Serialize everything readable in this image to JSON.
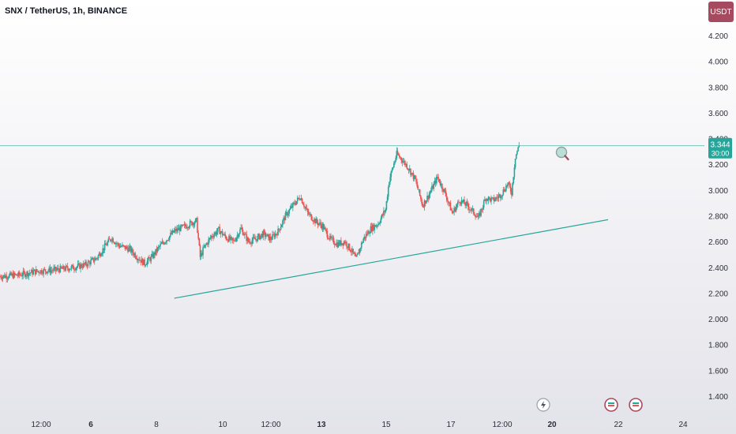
{
  "header": {
    "symbol_title": "SNX / TetherUS, 1h, BINANCE",
    "currency_label": "USDT"
  },
  "price_badge": {
    "price": "3.344",
    "countdown": "30:00",
    "color": "#26a69a"
  },
  "colors": {
    "up": "#26a69a",
    "down": "#ef5350",
    "trendline": "#26a69a",
    "price_line": "#26a69a",
    "currency_button": "#a64a5f"
  },
  "icons": [
    "search-icon",
    "lightning-event-icon",
    "flag-event-icon",
    "flag-event-icon"
  ],
  "chart_data": {
    "type": "candlestick",
    "title": "SNX / TetherUS, 1h, BINANCE",
    "ylim": [
      1.3,
      4.3
    ],
    "y_ticks": [
      "1.400",
      "1.600",
      "1.800",
      "2.000",
      "2.200",
      "2.400",
      "2.600",
      "2.800",
      "3.000",
      "3.200",
      "3.400",
      "3.600",
      "3.800",
      "4.000",
      "4.200"
    ],
    "x_ticks": [
      {
        "label": "12:00",
        "bold": false
      },
      {
        "label": "6",
        "bold": true
      },
      {
        "label": "8",
        "bold": false
      },
      {
        "label": "10",
        "bold": false
      },
      {
        "label": "12:00",
        "bold": false
      },
      {
        "label": "13",
        "bold": true
      },
      {
        "label": "15",
        "bold": false
      },
      {
        "label": "17",
        "bold": false
      },
      {
        "label": "12:00",
        "bold": false
      },
      {
        "label": "20",
        "bold": true
      },
      {
        "label": "22",
        "bold": false
      },
      {
        "label": "24",
        "bold": false
      }
    ],
    "last_price": 3.344,
    "price_path": [
      [
        0,
        2.33
      ],
      [
        5,
        2.34
      ],
      [
        10,
        2.37
      ],
      [
        15,
        2.38
      ],
      [
        20,
        2.4
      ],
      [
        23,
        2.42
      ],
      [
        26,
        2.47
      ],
      [
        28,
        2.55
      ],
      [
        30,
        2.63
      ],
      [
        32,
        2.57
      ],
      [
        35,
        2.54
      ],
      [
        37,
        2.48
      ],
      [
        39,
        2.43
      ],
      [
        41,
        2.48
      ],
      [
        43,
        2.56
      ],
      [
        45,
        2.62
      ],
      [
        47,
        2.68
      ],
      [
        50,
        2.72
      ],
      [
        52,
        2.75
      ],
      [
        53,
        2.76
      ],
      [
        54,
        2.48
      ],
      [
        55,
        2.55
      ],
      [
        57,
        2.64
      ],
      [
        59,
        2.69
      ],
      [
        61,
        2.63
      ],
      [
        63,
        2.6
      ],
      [
        65,
        2.7
      ],
      [
        67,
        2.6
      ],
      [
        69,
        2.62
      ],
      [
        71,
        2.66
      ],
      [
        73,
        2.62
      ],
      [
        75,
        2.68
      ],
      [
        77,
        2.8
      ],
      [
        79,
        2.88
      ],
      [
        81,
        2.95
      ],
      [
        83,
        2.82
      ],
      [
        85,
        2.76
      ],
      [
        87,
        2.72
      ],
      [
        89,
        2.62
      ],
      [
        91,
        2.58
      ],
      [
        93,
        2.6
      ],
      [
        95,
        2.52
      ],
      [
        96,
        2.46
      ],
      [
        98,
        2.62
      ],
      [
        100,
        2.7
      ],
      [
        102,
        2.74
      ],
      [
        104,
        2.85
      ],
      [
        105,
        3.08
      ],
      [
        107,
        3.28
      ],
      [
        108,
        3.25
      ],
      [
        110,
        3.18
      ],
      [
        112,
        3.08
      ],
      [
        114,
        2.88
      ],
      [
        116,
        2.98
      ],
      [
        118,
        3.1
      ],
      [
        120,
        2.98
      ],
      [
        122,
        2.82
      ],
      [
        124,
        2.92
      ],
      [
        126,
        2.88
      ],
      [
        128,
        2.82
      ],
      [
        129,
        2.78
      ],
      [
        131,
        2.94
      ],
      [
        133,
        2.92
      ],
      [
        135,
        2.96
      ],
      [
        137,
        3.05
      ],
      [
        138,
        2.98
      ],
      [
        139,
        3.26
      ],
      [
        140,
        3.344
      ]
    ],
    "x_domain": [
      0,
      190
    ],
    "trendline": {
      "start": [
        47,
        2.16
      ],
      "end": [
        164,
        2.77
      ]
    },
    "horizontal_line": 3.344
  }
}
